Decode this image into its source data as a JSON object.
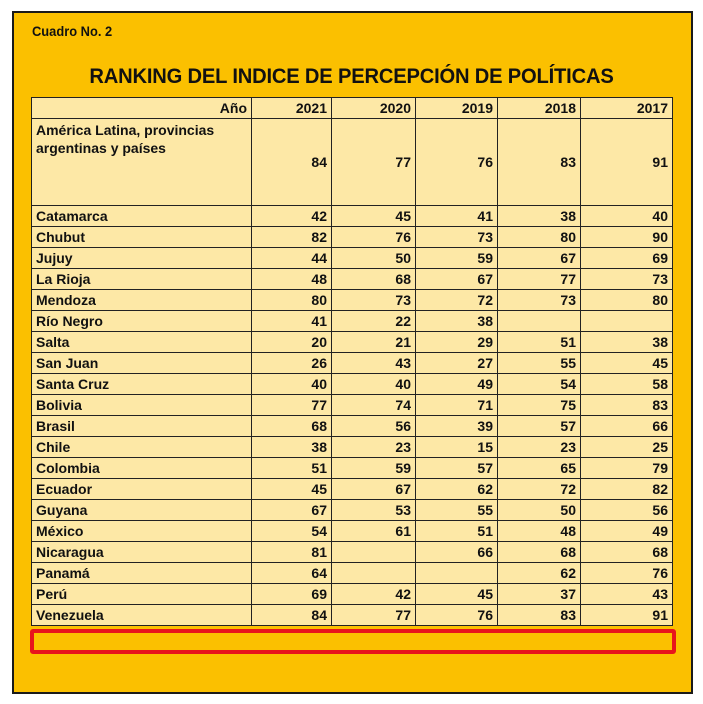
{
  "caption": "Cuadro No. 2",
  "title": "RANKING DEL INDICE DE PERCEPCIÓN DE POLÍTICAS",
  "table": {
    "header_label": "Año",
    "years": [
      "2021",
      "2020",
      "2019",
      "2018",
      "2017"
    ],
    "rows": [
      {
        "name": "América Latina, provincias argentinas y países",
        "values": [
          "84",
          "77",
          "76",
          "83",
          "91"
        ]
      },
      {
        "name": "Catamarca",
        "values": [
          "42",
          "45",
          "41",
          "38",
          "40"
        ]
      },
      {
        "name": "Chubut",
        "values": [
          "82",
          "76",
          "73",
          "80",
          "90"
        ]
      },
      {
        "name": "Jujuy",
        "values": [
          "44",
          "50",
          "59",
          "67",
          "69"
        ]
      },
      {
        "name": "La Rioja",
        "values": [
          "48",
          "68",
          "67",
          "77",
          "73"
        ]
      },
      {
        "name": "Mendoza",
        "values": [
          "80",
          "73",
          "72",
          "73",
          "80"
        ]
      },
      {
        "name": "Río Negro",
        "values": [
          "41",
          "22",
          "38",
          "",
          ""
        ]
      },
      {
        "name": "Salta",
        "values": [
          "20",
          "21",
          "29",
          "51",
          "38"
        ]
      },
      {
        "name": "San Juan",
        "values": [
          "26",
          "43",
          "27",
          "55",
          "45"
        ]
      },
      {
        "name": "Santa Cruz",
        "values": [
          "40",
          "40",
          "49",
          "54",
          "58"
        ]
      },
      {
        "name": "Bolivia",
        "values": [
          "77",
          "74",
          "71",
          "75",
          "83"
        ]
      },
      {
        "name": "Brasil",
        "values": [
          "68",
          "56",
          "39",
          "57",
          "66"
        ]
      },
      {
        "name": "Chile",
        "values": [
          "38",
          "23",
          "15",
          "23",
          "25"
        ]
      },
      {
        "name": "Colombia",
        "values": [
          "51",
          "59",
          "57",
          "65",
          "79"
        ]
      },
      {
        "name": "Ecuador",
        "values": [
          "45",
          "67",
          "62",
          "72",
          "82"
        ]
      },
      {
        "name": "Guyana",
        "values": [
          "67",
          "53",
          "55",
          "50",
          "56"
        ]
      },
      {
        "name": "México",
        "values": [
          "54",
          "61",
          "51",
          "48",
          "49"
        ]
      },
      {
        "name": "Nicaragua",
        "values": [
          "81",
          "",
          "66",
          "68",
          "68"
        ]
      },
      {
        "name": "Panamá",
        "values": [
          "64",
          "",
          "",
          "62",
          "76"
        ]
      },
      {
        "name": "Perú",
        "values": [
          "69",
          "42",
          "45",
          "37",
          "43"
        ]
      },
      {
        "name": "Venezuela",
        "values": [
          "84",
          "77",
          "76",
          "83",
          "91"
        ]
      }
    ]
  },
  "highlighted_row": "Perú",
  "colors": {
    "background": "#fbc000",
    "table_fill": "#fde8a6",
    "highlight": "#e8141c"
  }
}
